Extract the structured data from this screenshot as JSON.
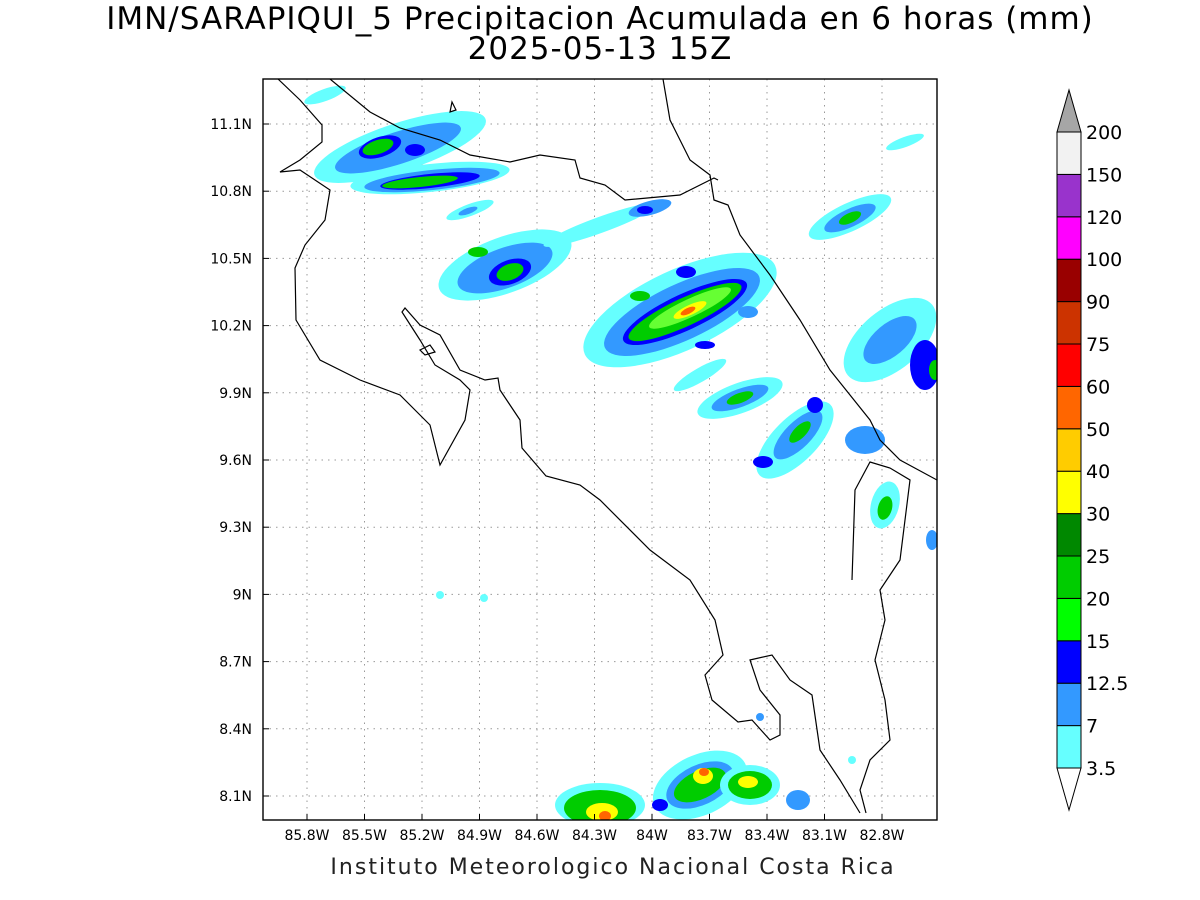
{
  "map": {
    "title": "IMN/SARAPIQUI_5 Precipitacion Acumulada en 6 horas (mm)",
    "valid_time": "2025-05-13 15Z",
    "credit": "Instituto Meteorologico Nacional Costa Rica",
    "lon_ticks": [
      "85.8W",
      "85.5W",
      "85.2W",
      "84.9W",
      "84.6W",
      "84.3W",
      "84W",
      "83.7W",
      "83.4W",
      "83.1W",
      "82.8W"
    ],
    "lat_ticks": [
      "11.1N",
      "10.8N",
      "10.5N",
      "10.2N",
      "9.9N",
      "9.6N",
      "9.3N",
      "9N",
      "8.7N",
      "8.4N",
      "8.1N"
    ],
    "colorbar": {
      "labels": [
        "3.5",
        "7",
        "12.5",
        "15",
        "20",
        "25",
        "30",
        "40",
        "50",
        "60",
        "75",
        "90",
        "100",
        "120",
        "150",
        "200"
      ],
      "colors": [
        "#ffffff",
        "#66ffff",
        "#3399ff",
        "#0000ff",
        "#00ff00",
        "#00cc00",
        "#008800",
        "#ffff00",
        "#ffcc00",
        "#ff6600",
        "#ff0000",
        "#cc3300",
        "#990000",
        "#ff00ff",
        "#9933cc",
        "#f2f2f2",
        "#a6a6a6"
      ]
    }
  }
}
